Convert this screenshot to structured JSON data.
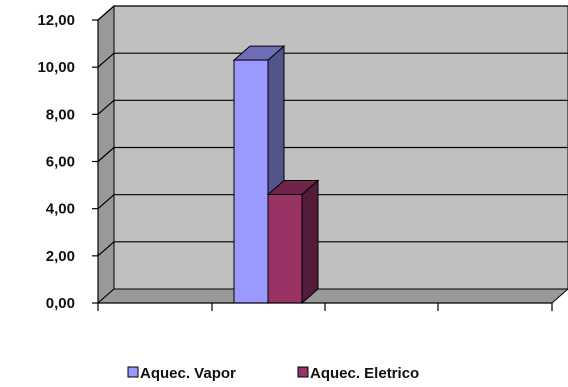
{
  "chart_data": {
    "type": "bar",
    "style": "3d-clustered-column",
    "categories": [
      ""
    ],
    "series": [
      {
        "name": "Aquec. Vapor",
        "values": [
          10.3
        ],
        "color": "#9999ff"
      },
      {
        "name": "Aquec. Eletrico",
        "values": [
          4.6
        ],
        "color": "#993366"
      }
    ],
    "ylim": [
      0,
      12
    ],
    "y_ticks": [
      "0,00",
      "2,00",
      "4,00",
      "6,00",
      "8,00",
      "10,00",
      "12,00"
    ],
    "grid": true,
    "legend": "bottom",
    "colors": {
      "wall": "#c0c0c0",
      "floor": "#999999",
      "gridline": "#000000"
    }
  }
}
